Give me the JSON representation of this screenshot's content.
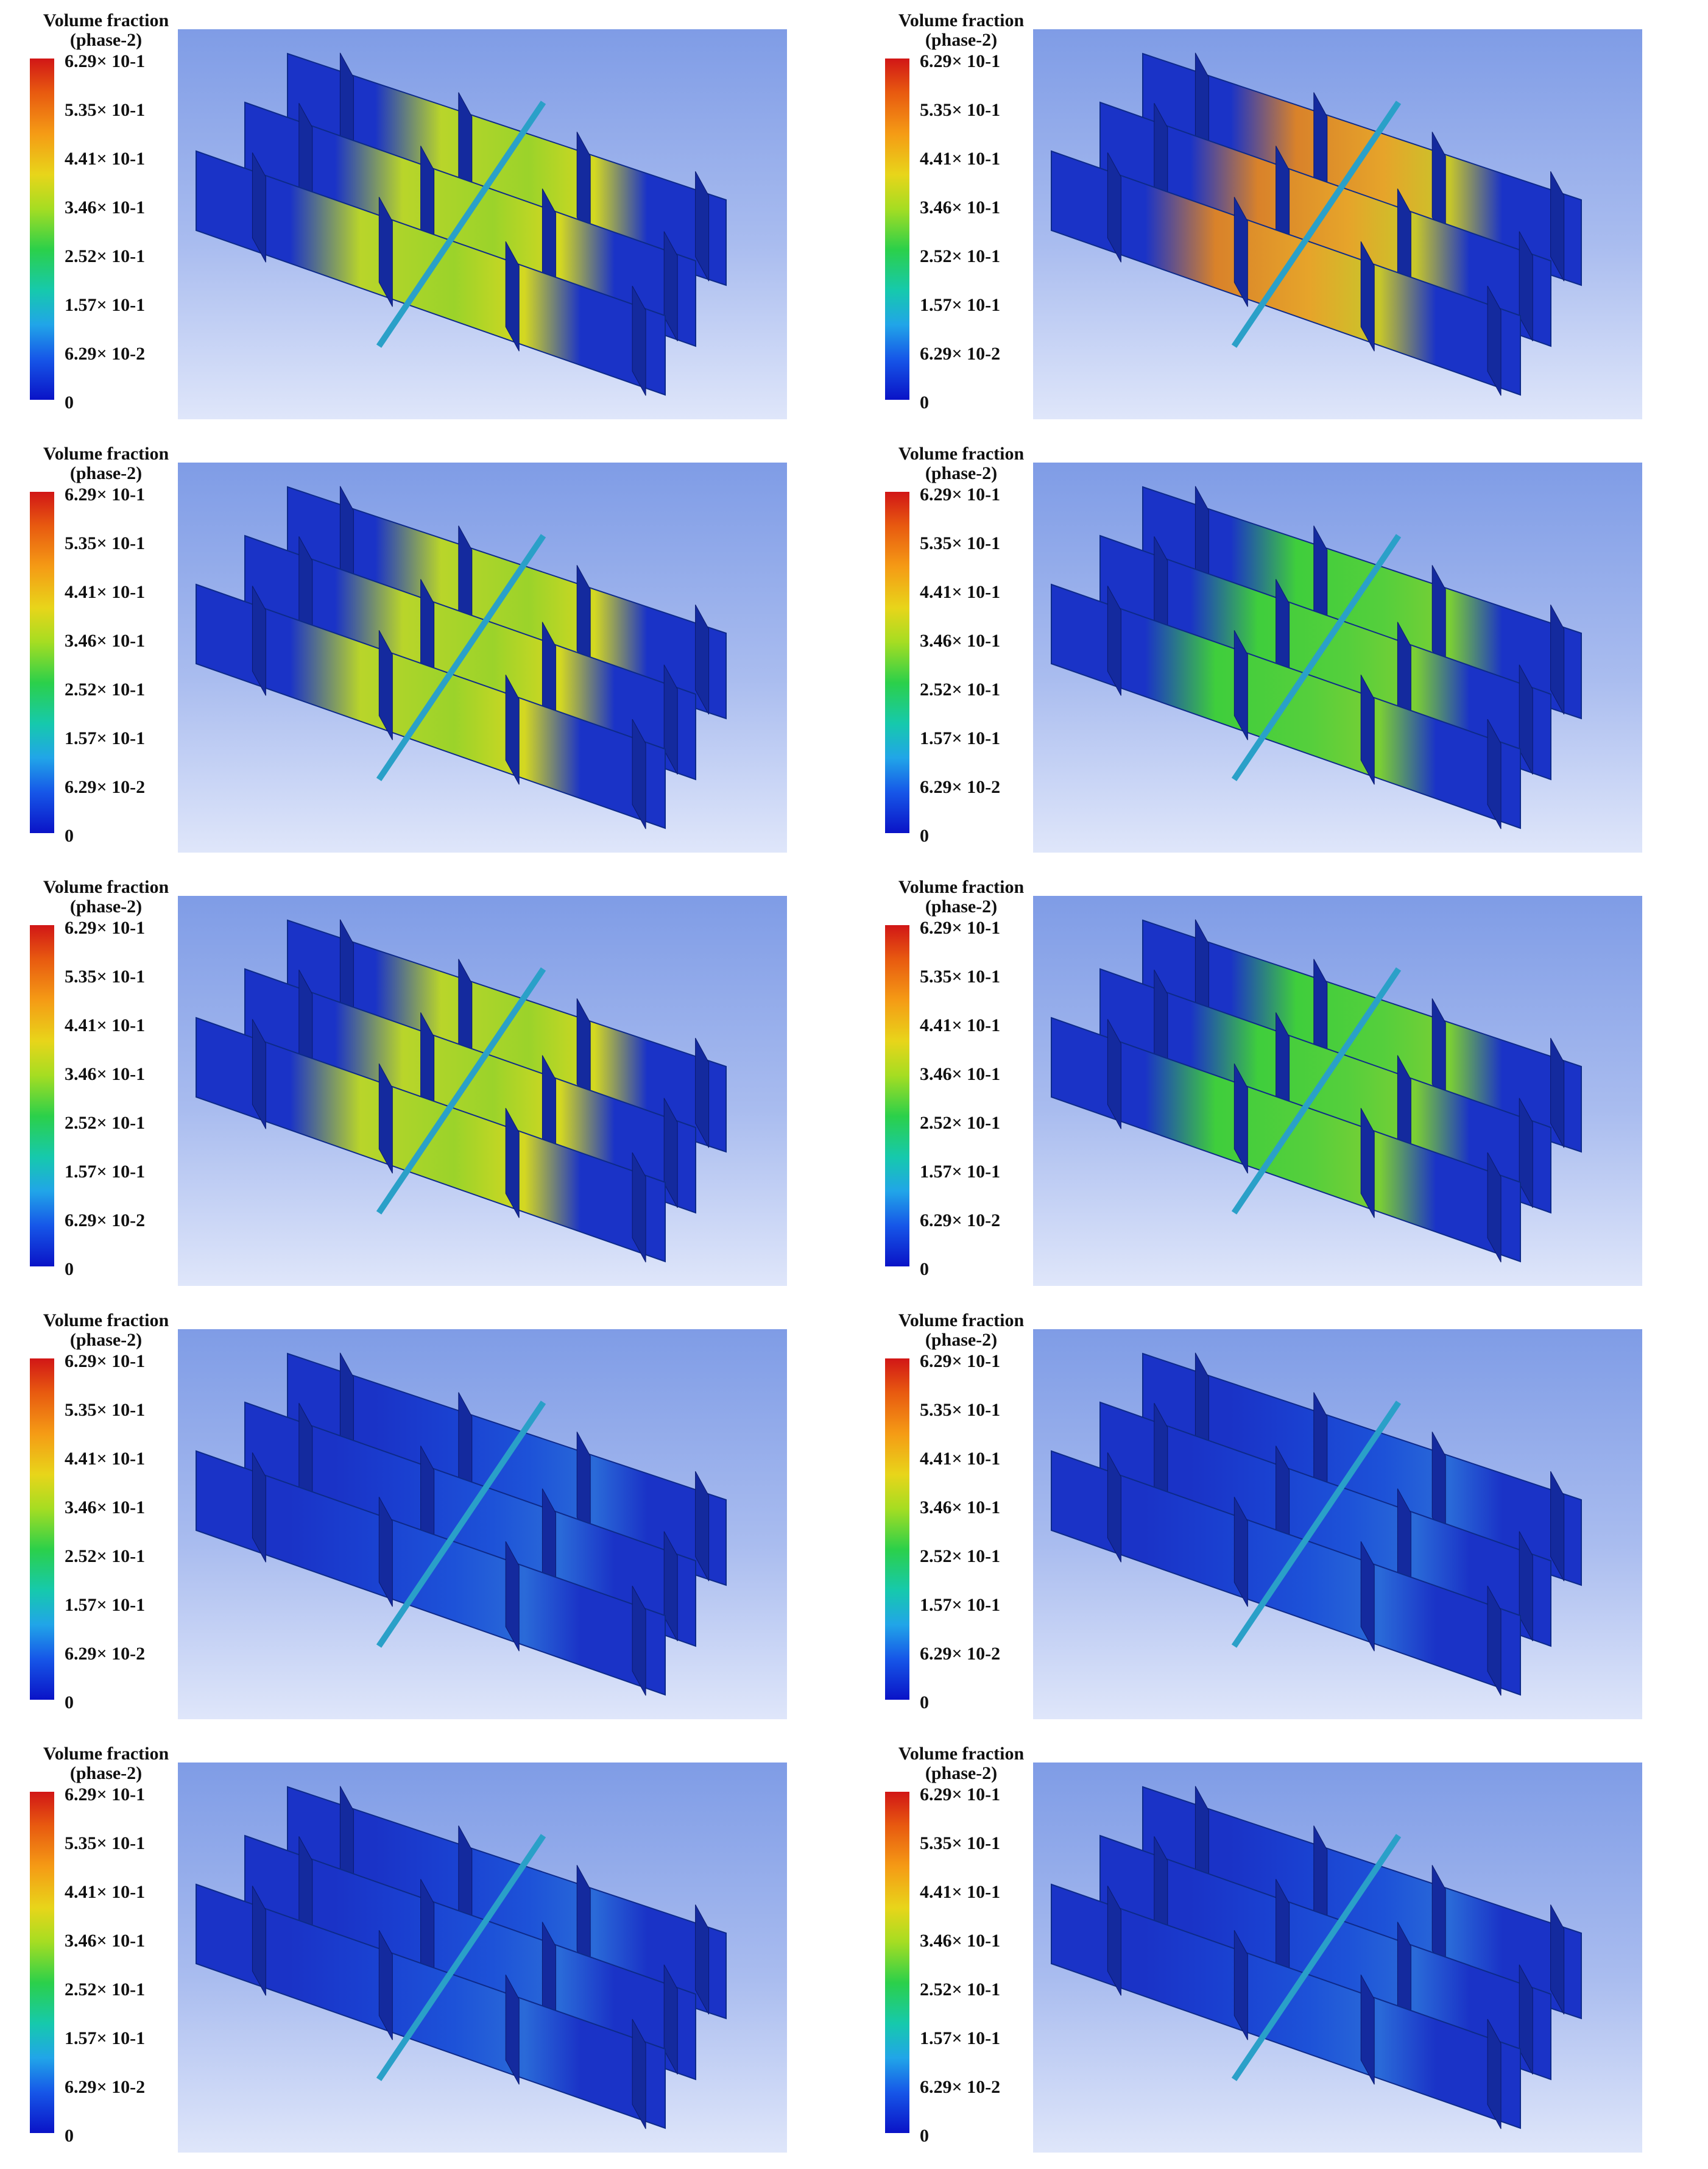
{
  "legend": {
    "title_line1": "Volume fraction",
    "title_line2": "(phase-2)",
    "ticks": [
      "6.29× 10-1",
      "5.35× 10-1",
      "4.41× 10-1",
      "3.46× 10-1",
      "2.52× 10-1",
      "1.57× 10-1",
      "6.29× 10-2",
      "0"
    ]
  },
  "palette": {
    "blue": "#1a33c7",
    "cyan": "#22b7e0",
    "green": "#3ad14a",
    "yellow": "#d8e01e",
    "orange": "#e88b18",
    "red": "#d8241a"
  },
  "panels": [
    {
      "dominant": "yellow-green"
    },
    {
      "dominant": "orange"
    },
    {
      "dominant": "yellow-green"
    },
    {
      "dominant": "green"
    },
    {
      "dominant": "yellow-green"
    },
    {
      "dominant": "green"
    },
    {
      "dominant": "blue"
    },
    {
      "dominant": "blue"
    },
    {
      "dominant": "blue"
    },
    {
      "dominant": "blue"
    }
  ]
}
